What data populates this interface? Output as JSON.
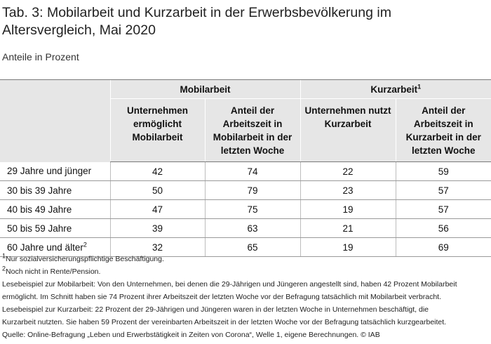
{
  "title": "Tab. 3: Mobilarbeit und Kurzarbeit in der Erwerbsbevölkerung im Altersvergleich, Mai 2020",
  "subtitle": "Anteile in Prozent",
  "table": {
    "groups": {
      "mobilarbeit": "Mobilarbeit",
      "kurzarbeit": "Kurzarbeit",
      "kurzarbeit_footnote": "1"
    },
    "columns": [
      "Unternehmen ermöglicht Mobilarbeit",
      "Anteil der Arbeitszeit in Mobilarbeit in der letzten Woche",
      "Unternehmen nutzt Kurzarbeit",
      "Anteil der Arbeitszeit in Kurzarbeit in der letzten Woche"
    ],
    "rows": [
      {
        "label": "29 Jahre und jünger",
        "footnote": "",
        "values": [
          "42",
          "74",
          "22",
          "59"
        ]
      },
      {
        "label": "30 bis 39 Jahre",
        "footnote": "",
        "values": [
          "50",
          "79",
          "23",
          "57"
        ]
      },
      {
        "label": "40 bis 49 Jahre",
        "footnote": "",
        "values": [
          "47",
          "75",
          "19",
          "57"
        ]
      },
      {
        "label": "50 bis 59 Jahre",
        "footnote": "",
        "values": [
          "39",
          "63",
          "21",
          "56"
        ]
      },
      {
        "label": "60 Jahre und älter",
        "footnote": "2",
        "values": [
          "32",
          "65",
          "19",
          "69"
        ]
      }
    ]
  },
  "notes": {
    "footnote1_mark": "1",
    "footnote1": "Nur sozialversicherungspflichtige Beschäftigung.",
    "footnote2_mark": "2",
    "footnote2": "Noch nicht in Rente/Pension.",
    "lesebeispiel_mobil_1": "Lesebeispiel zur Mobilarbeit: Von den Unternehmen, bei denen die 29-Jährigen und Jüngeren angestellt sind, haben 42 Prozent Mobilarbeit",
    "lesebeispiel_mobil_2": "ermöglicht. Im Schnitt haben sie 74 Prozent ihrer Arbeitszeit der letzten Woche vor der Befragung tatsächlich mit Mobilarbeit verbracht.",
    "lesebeispiel_kurz_1": "Lesebeispiel zur Kurzarbeit: 22 Prozent der 29-Jährigen und Jüngeren waren in der letzten Woche in Unternehmen beschäftigt, die",
    "lesebeispiel_kurz_2": "Kurzarbeit nutzten. Sie haben 59 Prozent der vereinbarten Arbeitszeit in der letzten Woche vor der Befragung tatsächlich kurzgearbeitet.",
    "quelle": "Quelle: Online-Befragung „Leben und Erwerbstätigkeit in Zeiten von Corona“, Welle 1, eigene Berechnungen. © IAB"
  }
}
